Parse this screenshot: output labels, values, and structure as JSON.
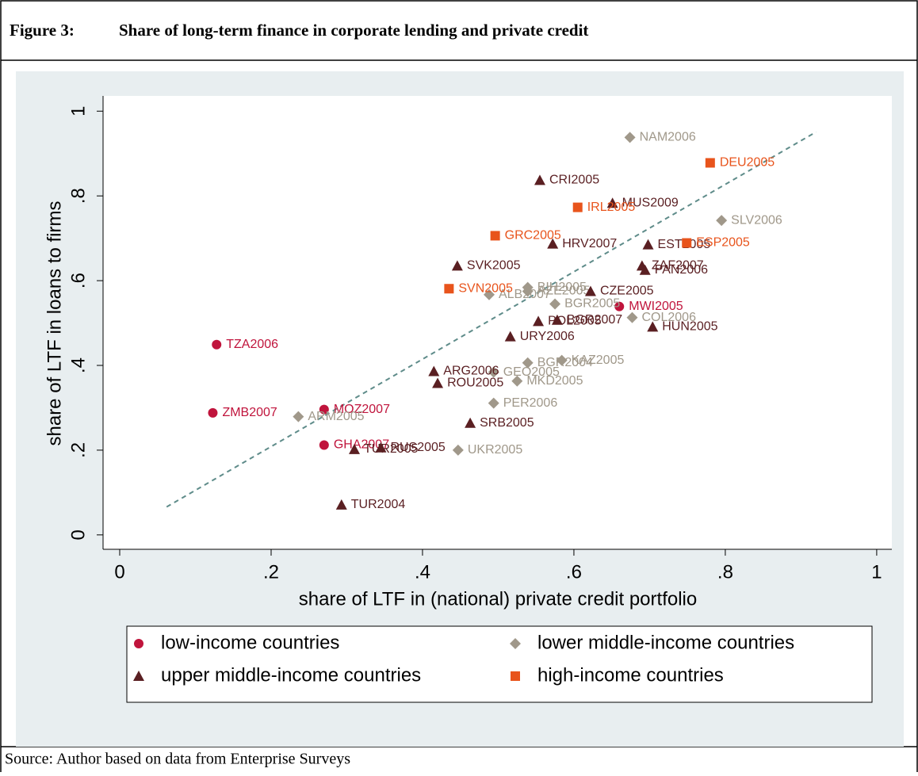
{
  "figure_label": "Figure 3:",
  "source": "Source: Author based on data from Enterprise Surveys",
  "chart_data": {
    "type": "scatter",
    "title": "Share of long-term finance in corporate lending and private credit",
    "x_label": "share of LTF in (national) private credit portfolio",
    "y_label": "share of LTF in loans to firms",
    "xlim": [
      -0.022,
      1.02
    ],
    "ylim": [
      -0.034,
      1.036
    ],
    "xticks": [
      0,
      {
        "value": 0.2,
        "label": ".2"
      },
      {
        "value": 0.4,
        "label": ".4"
      },
      {
        "value": 0.6,
        "label": ".6"
      },
      {
        "value": 0.8,
        "label": ".8"
      },
      1
    ],
    "yticks": [
      0,
      {
        "value": 0.2,
        "label": ".2"
      },
      {
        "value": 0.4,
        "label": ".4"
      },
      {
        "value": 0.6,
        "label": ".6"
      },
      {
        "value": 0.8,
        "label": ".8"
      },
      1
    ],
    "grid": false,
    "fit_line": {
      "x": [
        0.062,
        0.92
      ],
      "y": [
        0.066,
        0.951
      ],
      "color": "#5f8c8a",
      "dashed": true
    },
    "series": [
      {
        "name": "low-income countries",
        "color": "#c0143c",
        "marker": "circle",
        "labels": [
          "TZA2006",
          "ZMB2007",
          "MOZ2007",
          "GHA2007",
          "MWI2005"
        ],
        "x": [
          0.128,
          0.123,
          0.27,
          0.27,
          0.66
        ],
        "values": [
          0.449,
          0.288,
          0.296,
          0.212,
          0.539
        ]
      },
      {
        "name": "lower middle-income countries",
        "color": "#a0988a",
        "marker": "diamond",
        "labels": [
          "NAM2006",
          "SLV2006",
          "BIH2005",
          "ALB2007",
          "AZE2005",
          "BGR2005",
          "COL2006",
          "KAZ2005",
          "BGR2004",
          "GEO2005",
          "MKD2005",
          "PER2006",
          "ARM2005",
          "UKR2005"
        ],
        "x": [
          0.674,
          0.795,
          0.539,
          0.488,
          0.539,
          0.575,
          0.677,
          0.584,
          0.539,
          0.494,
          0.525,
          0.494,
          0.236,
          0.447
        ],
        "values": [
          0.938,
          0.742,
          0.584,
          0.567,
          0.575,
          0.545,
          0.513,
          0.412,
          0.406,
          0.384,
          0.363,
          0.311,
          0.279,
          0.2
        ]
      },
      {
        "name": "upper middle-income countries",
        "color": "#5a1f22",
        "marker": "triangle",
        "labels": [
          "CRI2005",
          "MUS2009",
          "HRV2007",
          "EST2005",
          "ZAF2007",
          "PAN2006",
          "SVK2005",
          "CZE2005",
          "POL2005",
          "BGR2007",
          "HUN2005",
          "URY2006",
          "ARG2006",
          "ROU2005",
          "SRB2005",
          "TUR2005",
          "RUS2005",
          "TUR2004"
        ],
        "x": [
          0.555,
          0.651,
          0.572,
          0.698,
          0.69,
          0.694,
          0.446,
          0.622,
          0.553,
          0.578,
          0.704,
          0.516,
          0.415,
          0.42,
          0.463,
          0.31,
          0.345,
          0.293
        ],
        "values": [
          0.837,
          0.783,
          0.687,
          0.685,
          0.635,
          0.625,
          0.635,
          0.575,
          0.504,
          0.507,
          0.491,
          0.468,
          0.386,
          0.358,
          0.264,
          0.202,
          0.206,
          0.071
        ]
      },
      {
        "name": "high-income countries",
        "color": "#e8541c",
        "marker": "square",
        "labels": [
          "DEU2005",
          "IRL2005",
          "GRC2005",
          "ESP2005",
          "SVN2005"
        ],
        "x": [
          0.78,
          0.605,
          0.496,
          0.749,
          0.435
        ],
        "values": [
          0.878,
          0.773,
          0.706,
          0.689,
          0.581
        ]
      }
    ]
  }
}
